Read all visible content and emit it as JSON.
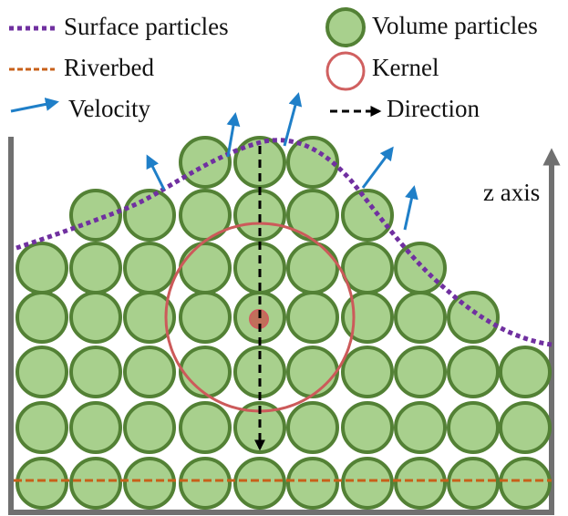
{
  "legend": {
    "surface": "Surface particles",
    "riverbed": "Riverbed",
    "velocity": "Velocity",
    "volume": "Volume particles",
    "kernel": "Kernel",
    "direction": "Direction"
  },
  "axis_label": "z axis"
}
